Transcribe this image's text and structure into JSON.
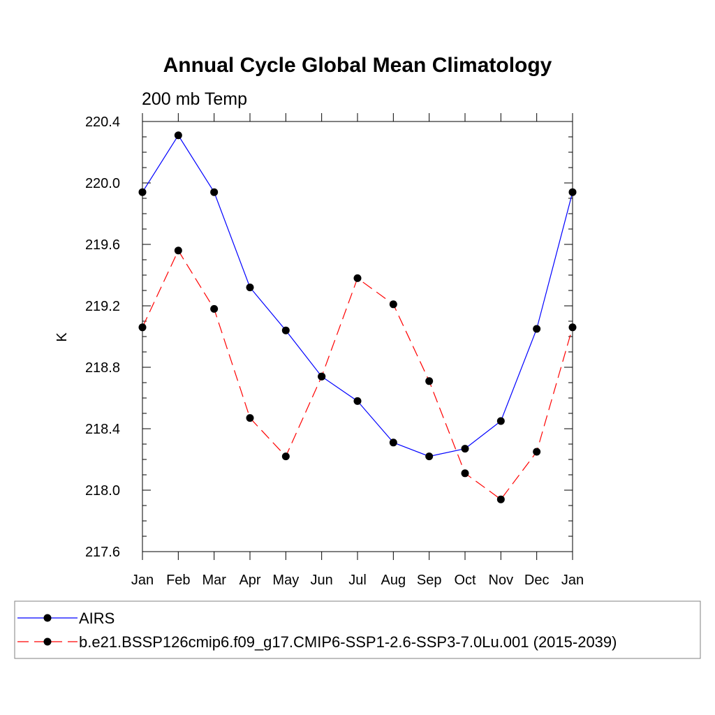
{
  "chart_data": {
    "type": "line",
    "title": "Annual Cycle Global Mean Climatology",
    "subtitle": "200 mb Temp",
    "ylabel": "K",
    "xlabel": "",
    "categories": [
      "Jan",
      "Feb",
      "Mar",
      "Apr",
      "May",
      "Jun",
      "Jul",
      "Aug",
      "Sep",
      "Oct",
      "Nov",
      "Dec",
      "Jan"
    ],
    "yticks": [
      "220.4",
      "220.0",
      "219.6",
      "219.2",
      "218.8",
      "218.4",
      "218.0",
      "217.6"
    ],
    "ylim": [
      217.6,
      220.4
    ],
    "grid": false,
    "legend_position": "bottom",
    "series": [
      {
        "name": "AIRS",
        "color": "#0000ff",
        "line_style": "solid",
        "values": [
          219.94,
          220.31,
          219.94,
          219.32,
          219.04,
          218.74,
          218.58,
          218.31,
          218.22,
          218.27,
          218.45,
          219.05,
          219.94
        ]
      },
      {
        "name": "b.e21.BSSP126cmip6.f09_g17.CMIP6-SSP1-2.6-SSP3-7.0Lu.001 (2015-2039)",
        "color": "#ff0000",
        "line_style": "dashed",
        "values": [
          219.06,
          219.56,
          219.18,
          218.47,
          218.22,
          218.74,
          219.38,
          219.21,
          218.71,
          218.11,
          217.94,
          218.25,
          219.06
        ]
      }
    ]
  }
}
